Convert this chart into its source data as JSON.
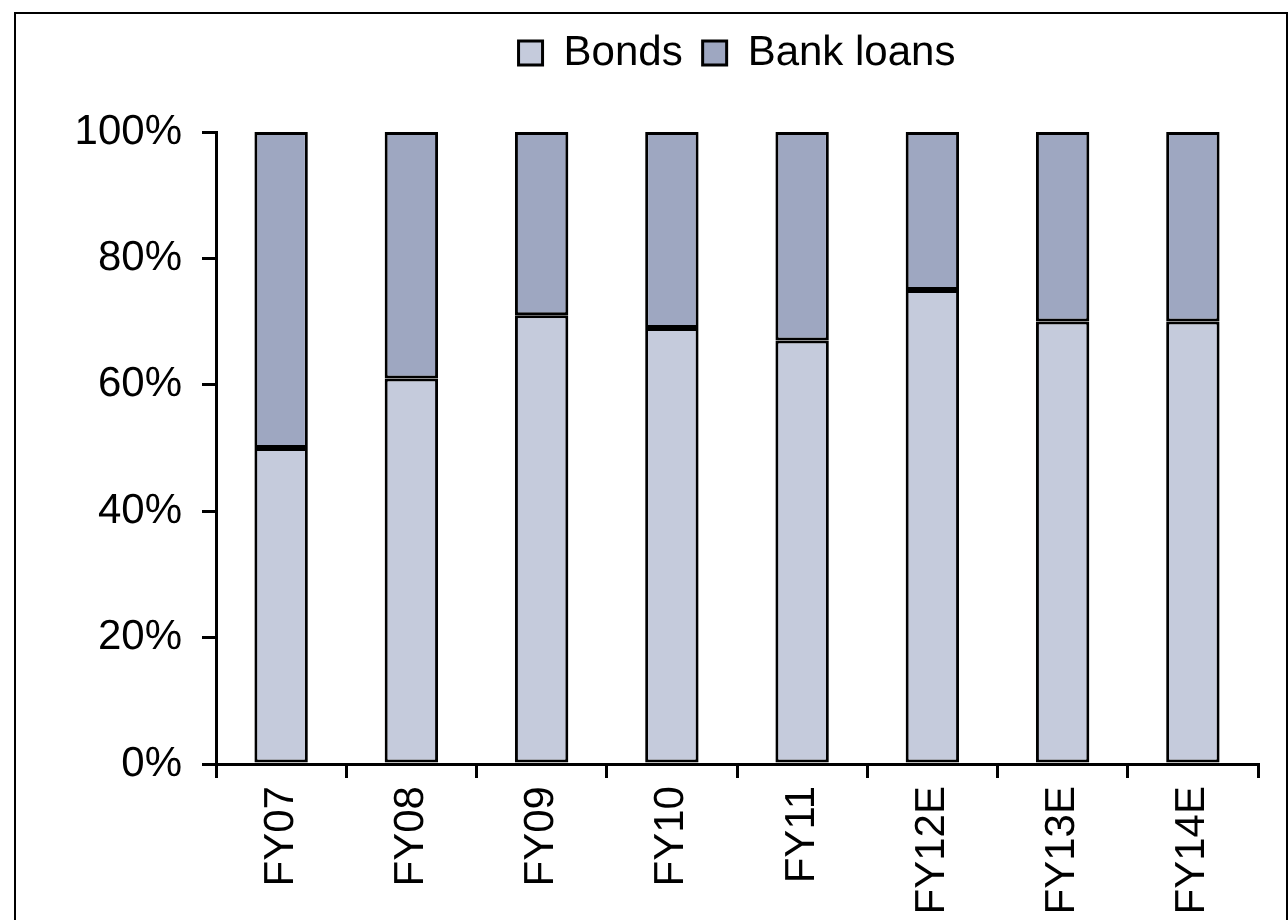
{
  "chart_data": {
    "type": "bar",
    "categories": [
      "FY07",
      "FY08",
      "FY09",
      "FY10",
      "FY11",
      "FY12E",
      "FY13E",
      "FY14E"
    ],
    "series": [
      {
        "name": "Bonds",
        "color": "#c5cbdc",
        "values": [
          50,
          61,
          71,
          69,
          67,
          75,
          70,
          70
        ]
      },
      {
        "name": "Bank loans",
        "color": "#9ea7c1",
        "values": [
          50,
          39,
          29,
          31,
          33,
          25,
          30,
          30
        ]
      }
    ],
    "stacked": true,
    "ylim": [
      0,
      100
    ],
    "yticks": [
      {
        "value": 0,
        "label": "0%"
      },
      {
        "value": 20,
        "label": "20%"
      },
      {
        "value": 40,
        "label": "40%"
      },
      {
        "value": 60,
        "label": "60%"
      },
      {
        "value": 80,
        "label": "80%"
      },
      {
        "value": 100,
        "label": "100%"
      }
    ],
    "legend": "top",
    "grid": false
  }
}
